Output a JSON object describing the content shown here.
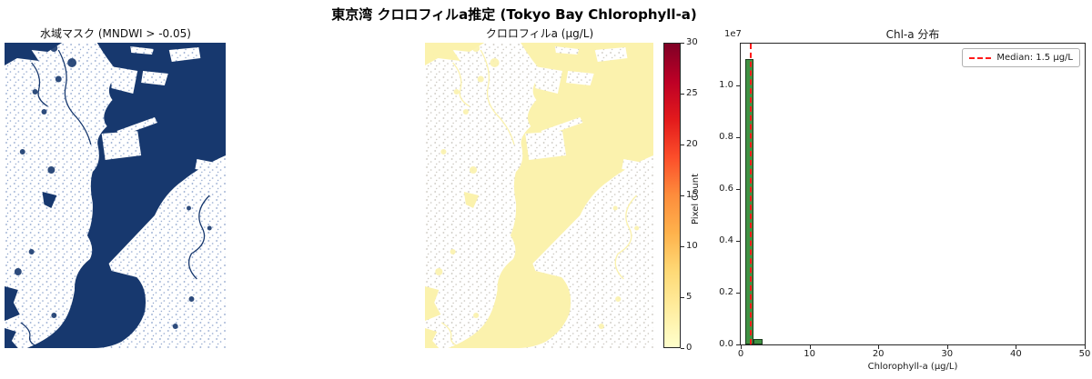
{
  "figure": {
    "suptitle": "東京湾 クロロフィルa推定 (Tokyo Bay Chlorophyll-a)"
  },
  "panels": {
    "water_mask": {
      "title": "水域マスク (MNDWI > -0.05)"
    },
    "chlorophyll": {
      "title": "クロロフィルa (μg/L)"
    }
  },
  "colorbar": {
    "min": 0,
    "max": 30,
    "ticks": [
      0,
      5,
      10,
      15,
      20,
      25,
      30
    ],
    "gradient_stops": [
      "#ffffcc",
      "#ffeda0",
      "#fed976",
      "#feb24c",
      "#fd8d3c",
      "#fc4e2a",
      "#e31a1c",
      "#bd0026",
      "#800026"
    ]
  },
  "colors": {
    "water-navy": "#17386e",
    "speckle-navy": "#8ca3cc",
    "water-yellow": "#fbf2ad",
    "speckle-gray": "#c9c5bd",
    "bar-green": "#3f9142",
    "bar-edge": "#1e3d1f",
    "median-red": "#ff1a1a",
    "spine": "#262626",
    "text": "#1a1a1a"
  },
  "chart_data": {
    "type": "bar",
    "title": "Chl-a 分布",
    "xlabel": "Chlorophyll-a (μg/L)",
    "ylabel": "Pixel Count",
    "y_offset_text": "1e7",
    "xlim": [
      0,
      50
    ],
    "ylim": [
      0,
      11600000
    ],
    "x_ticks": [
      0,
      10,
      20,
      30,
      40,
      50
    ],
    "y_ticks": [
      0.0,
      0.2,
      0.4,
      0.6,
      0.8,
      1.0
    ],
    "y_tick_scale": 10000000,
    "grid": false,
    "legend_position": "upper right",
    "bars": [
      {
        "x0": 0.6,
        "x1": 1.9,
        "count": 11000000
      },
      {
        "x0": 1.9,
        "x1": 3.2,
        "count": 200000
      }
    ],
    "median": {
      "value": 1.5,
      "label": "Median: 1.5 μg/L"
    }
  }
}
